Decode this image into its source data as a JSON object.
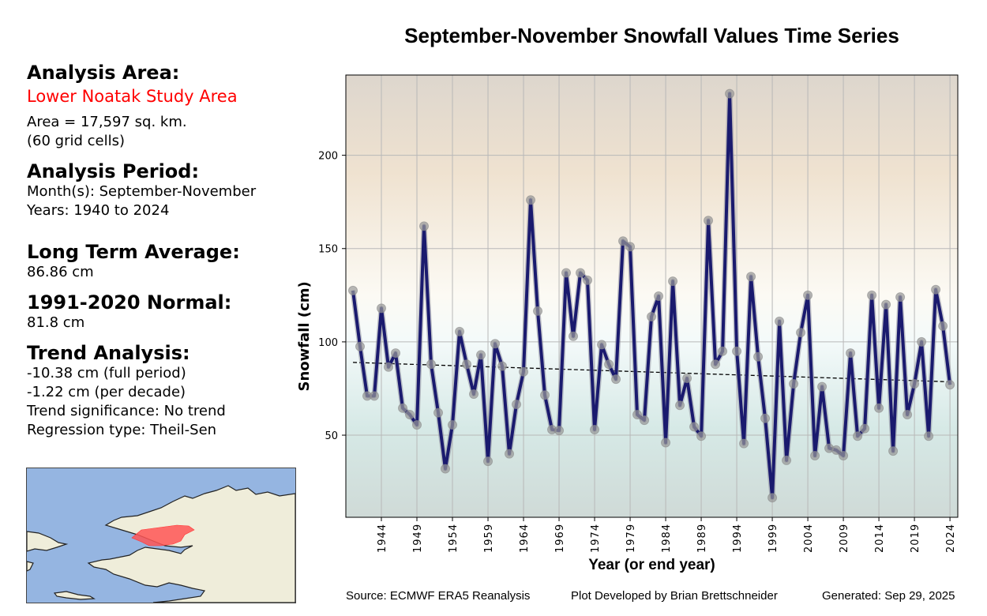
{
  "sidebar": {
    "area_header": "Analysis Area:",
    "area_name": "Lower Noatak Study Area",
    "area_size": "Area = 17,597 sq. km.",
    "grid_cells": "(60 grid cells)",
    "period_header": "Analysis Period:",
    "months": "Month(s): September-November",
    "years": "Years: 1940 to 2024",
    "lta_header": "Long Term Average:",
    "lta_value": "86.86 cm",
    "normal_header": "1991-2020 Normal:",
    "normal_value": "81.8 cm",
    "trend_header": "Trend Analysis:",
    "trend_full": "-10.38 cm (full period)",
    "trend_decade": "-1.22 cm (per decade)",
    "trend_significance": "Trend significance: No trend",
    "regression_type": "Regression type: Theil-Sen"
  },
  "map": {
    "water_color": "#95b5e1",
    "land_color": "#efedda",
    "study_area_color": "#ff5555"
  },
  "footer": {
    "source": "Source: ECMWF ERA5 Reanalysis",
    "developer": "Plot Developed by Brian Brettschneider",
    "generated": "Generated: Sep 29, 2025"
  },
  "chart_data": {
    "type": "line",
    "title": "September-November Snowfall Values Time Series",
    "xlabel": "Year (or end year)",
    "ylabel": "Snowfall (cm)",
    "xlim": [
      1939,
      2025.1
    ],
    "ylim": [
      6,
      243
    ],
    "grid": true,
    "xticks": [
      1944,
      1949,
      1954,
      1959,
      1964,
      1969,
      1974,
      1979,
      1984,
      1989,
      1994,
      1999,
      2004,
      2009,
      2014,
      2019,
      2024
    ],
    "yticks": [
      50,
      100,
      150,
      200
    ],
    "line_color": "#1a1a6e",
    "x": [
      1940,
      1941,
      1942,
      1943,
      1944,
      1945,
      1946,
      1947,
      1948,
      1949,
      1950,
      1951,
      1952,
      1953,
      1954,
      1955,
      1956,
      1957,
      1958,
      1959,
      1960,
      1961,
      1962,
      1963,
      1964,
      1965,
      1966,
      1967,
      1968,
      1969,
      1970,
      1971,
      1972,
      1973,
      1974,
      1975,
      1976,
      1977,
      1978,
      1979,
      1980,
      1981,
      1982,
      1983,
      1984,
      1985,
      1986,
      1987,
      1988,
      1989,
      1990,
      1991,
      1992,
      1993,
      1994,
      1995,
      1996,
      1997,
      1998,
      1999,
      2000,
      2001,
      2002,
      2003,
      2004,
      2005,
      2006,
      2007,
      2008,
      2009,
      2010,
      2011,
      2012,
      2013,
      2014,
      2015,
      2016,
      2017,
      2018,
      2019,
      2020,
      2021,
      2022,
      2023,
      2024
    ],
    "series": [
      {
        "name": "Snowfall",
        "values": [
          127.5,
          97.5,
          71,
          71,
          118,
          86.5,
          94,
          64.5,
          61,
          55.5,
          162,
          88,
          62,
          32,
          55.5,
          105.5,
          88,
          72,
          93,
          36,
          99,
          87,
          40,
          66.5,
          84,
          176,
          116.5,
          71.5,
          53,
          52.5,
          137,
          103,
          137,
          133,
          53,
          98.5,
          88,
          80,
          154,
          151,
          61,
          58,
          113.5,
          124.5,
          46,
          132.5,
          66,
          80.5,
          54.5,
          49.5,
          165,
          88,
          95,
          233,
          95,
          45.5,
          135,
          92,
          59,
          16.5,
          111,
          36.5,
          77.5,
          105,
          125,
          39,
          76,
          43,
          42,
          39,
          94,
          49.5,
          53.5,
          125,
          64.5,
          120,
          41.5,
          124,
          61,
          77.5,
          100,
          49.5,
          128,
          108.5,
          77
        ]
      }
    ],
    "trend": {
      "name": "Theil-Sen trend",
      "start": [
        1940,
        89
      ],
      "end": [
        2024,
        78.6
      ]
    }
  }
}
